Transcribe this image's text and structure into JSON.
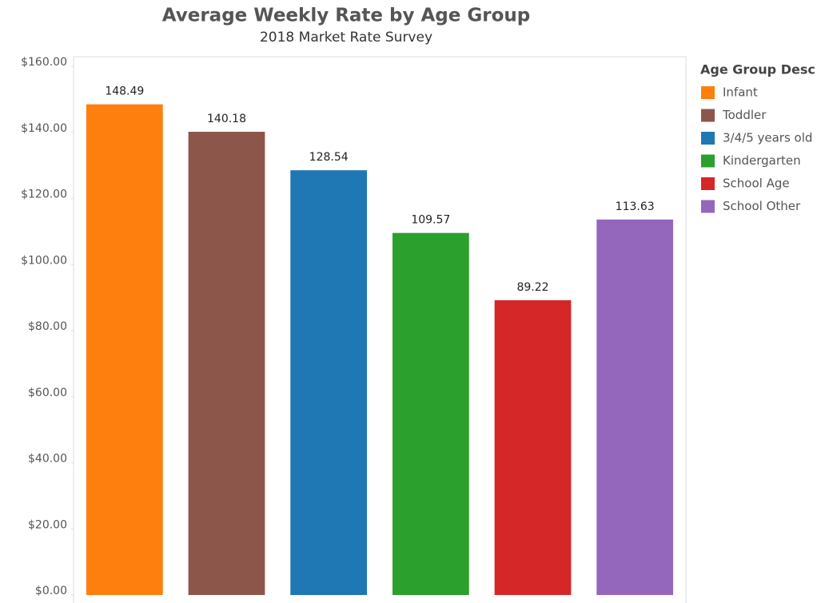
{
  "chart_data": {
    "type": "bar",
    "title": "Average Weekly Rate by Age Group",
    "subtitle": "2018 Market Rate Survey",
    "legend_title": "Age Group Desc",
    "categories": [
      "Infant",
      "Toddler",
      "3/4/5 years old",
      "Kindergarten",
      "School Age",
      "School Other"
    ],
    "values": [
      148.49,
      140.18,
      128.54,
      109.57,
      89.22,
      113.63
    ],
    "colors": [
      "#ff7f0e",
      "#8c564b",
      "#1f77b4",
      "#2ca02c",
      "#d62728",
      "#9467bd"
    ],
    "ylim": [
      0,
      160
    ],
    "yticks": [
      {
        "value": 0,
        "label": "$0.00"
      },
      {
        "value": 20,
        "label": "$20.00"
      },
      {
        "value": 40,
        "label": "$40.00"
      },
      {
        "value": 60,
        "label": "$60.00"
      },
      {
        "value": 80,
        "label": "$80.00"
      },
      {
        "value": 100,
        "label": "$100.00"
      },
      {
        "value": 120,
        "label": "$120.00"
      },
      {
        "value": 140,
        "label": "$140.00"
      },
      {
        "value": 160,
        "label": "$160.00"
      }
    ],
    "grid": false,
    "legend": "right"
  }
}
